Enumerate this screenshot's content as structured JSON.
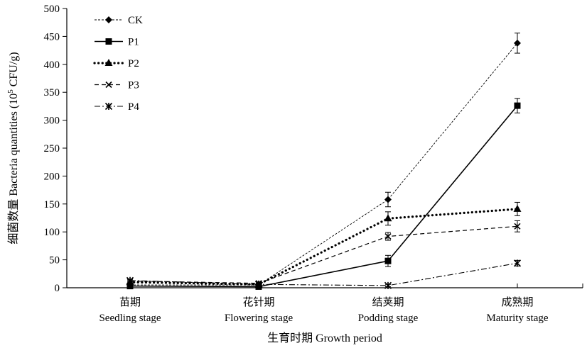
{
  "chart_data": {
    "type": "line",
    "categories": [
      {
        "cn": "苗期",
        "en": "Seedling stage"
      },
      {
        "cn": "花针期",
        "en": "Flowering stage"
      },
      {
        "cn": "结荚期",
        "en": "Podding stage"
      },
      {
        "cn": "成熟期",
        "en": "Maturity stage"
      }
    ],
    "xlabel": "生育时期 Growth period",
    "ylabel": {
      "pre": "细菌数量 Bacteria quantities (10",
      "sup": "5",
      "post": " CFU/g)"
    },
    "ylim": [
      0,
      500
    ],
    "yticks": [
      0,
      50,
      100,
      150,
      200,
      250,
      300,
      350,
      400,
      450,
      500
    ],
    "grid": false,
    "legend_position": "top-left",
    "series": [
      {
        "name": "CK",
        "values": [
          5,
          5,
          158,
          438
        ],
        "errors": [
          2,
          2,
          13,
          18
        ],
        "line": "thin-dashed",
        "marker": "diamond"
      },
      {
        "name": "P1",
        "values": [
          3,
          2,
          48,
          326
        ],
        "errors": [
          2,
          2,
          10,
          13
        ],
        "line": "solid",
        "marker": "square"
      },
      {
        "name": "P2",
        "values": [
          10,
          6,
          124,
          141
        ],
        "errors": [
          3,
          2,
          12,
          12
        ],
        "line": "dotted-bold",
        "marker": "triangle"
      },
      {
        "name": "P3",
        "values": [
          12,
          8,
          92,
          110
        ],
        "errors": [
          3,
          2,
          7,
          10
        ],
        "line": "dashed",
        "marker": "x"
      },
      {
        "name": "P4",
        "values": [
          13,
          6,
          4,
          44
        ],
        "errors": [
          2,
          2,
          2,
          5
        ],
        "line": "dash-dot",
        "marker": "asterisk"
      }
    ]
  }
}
